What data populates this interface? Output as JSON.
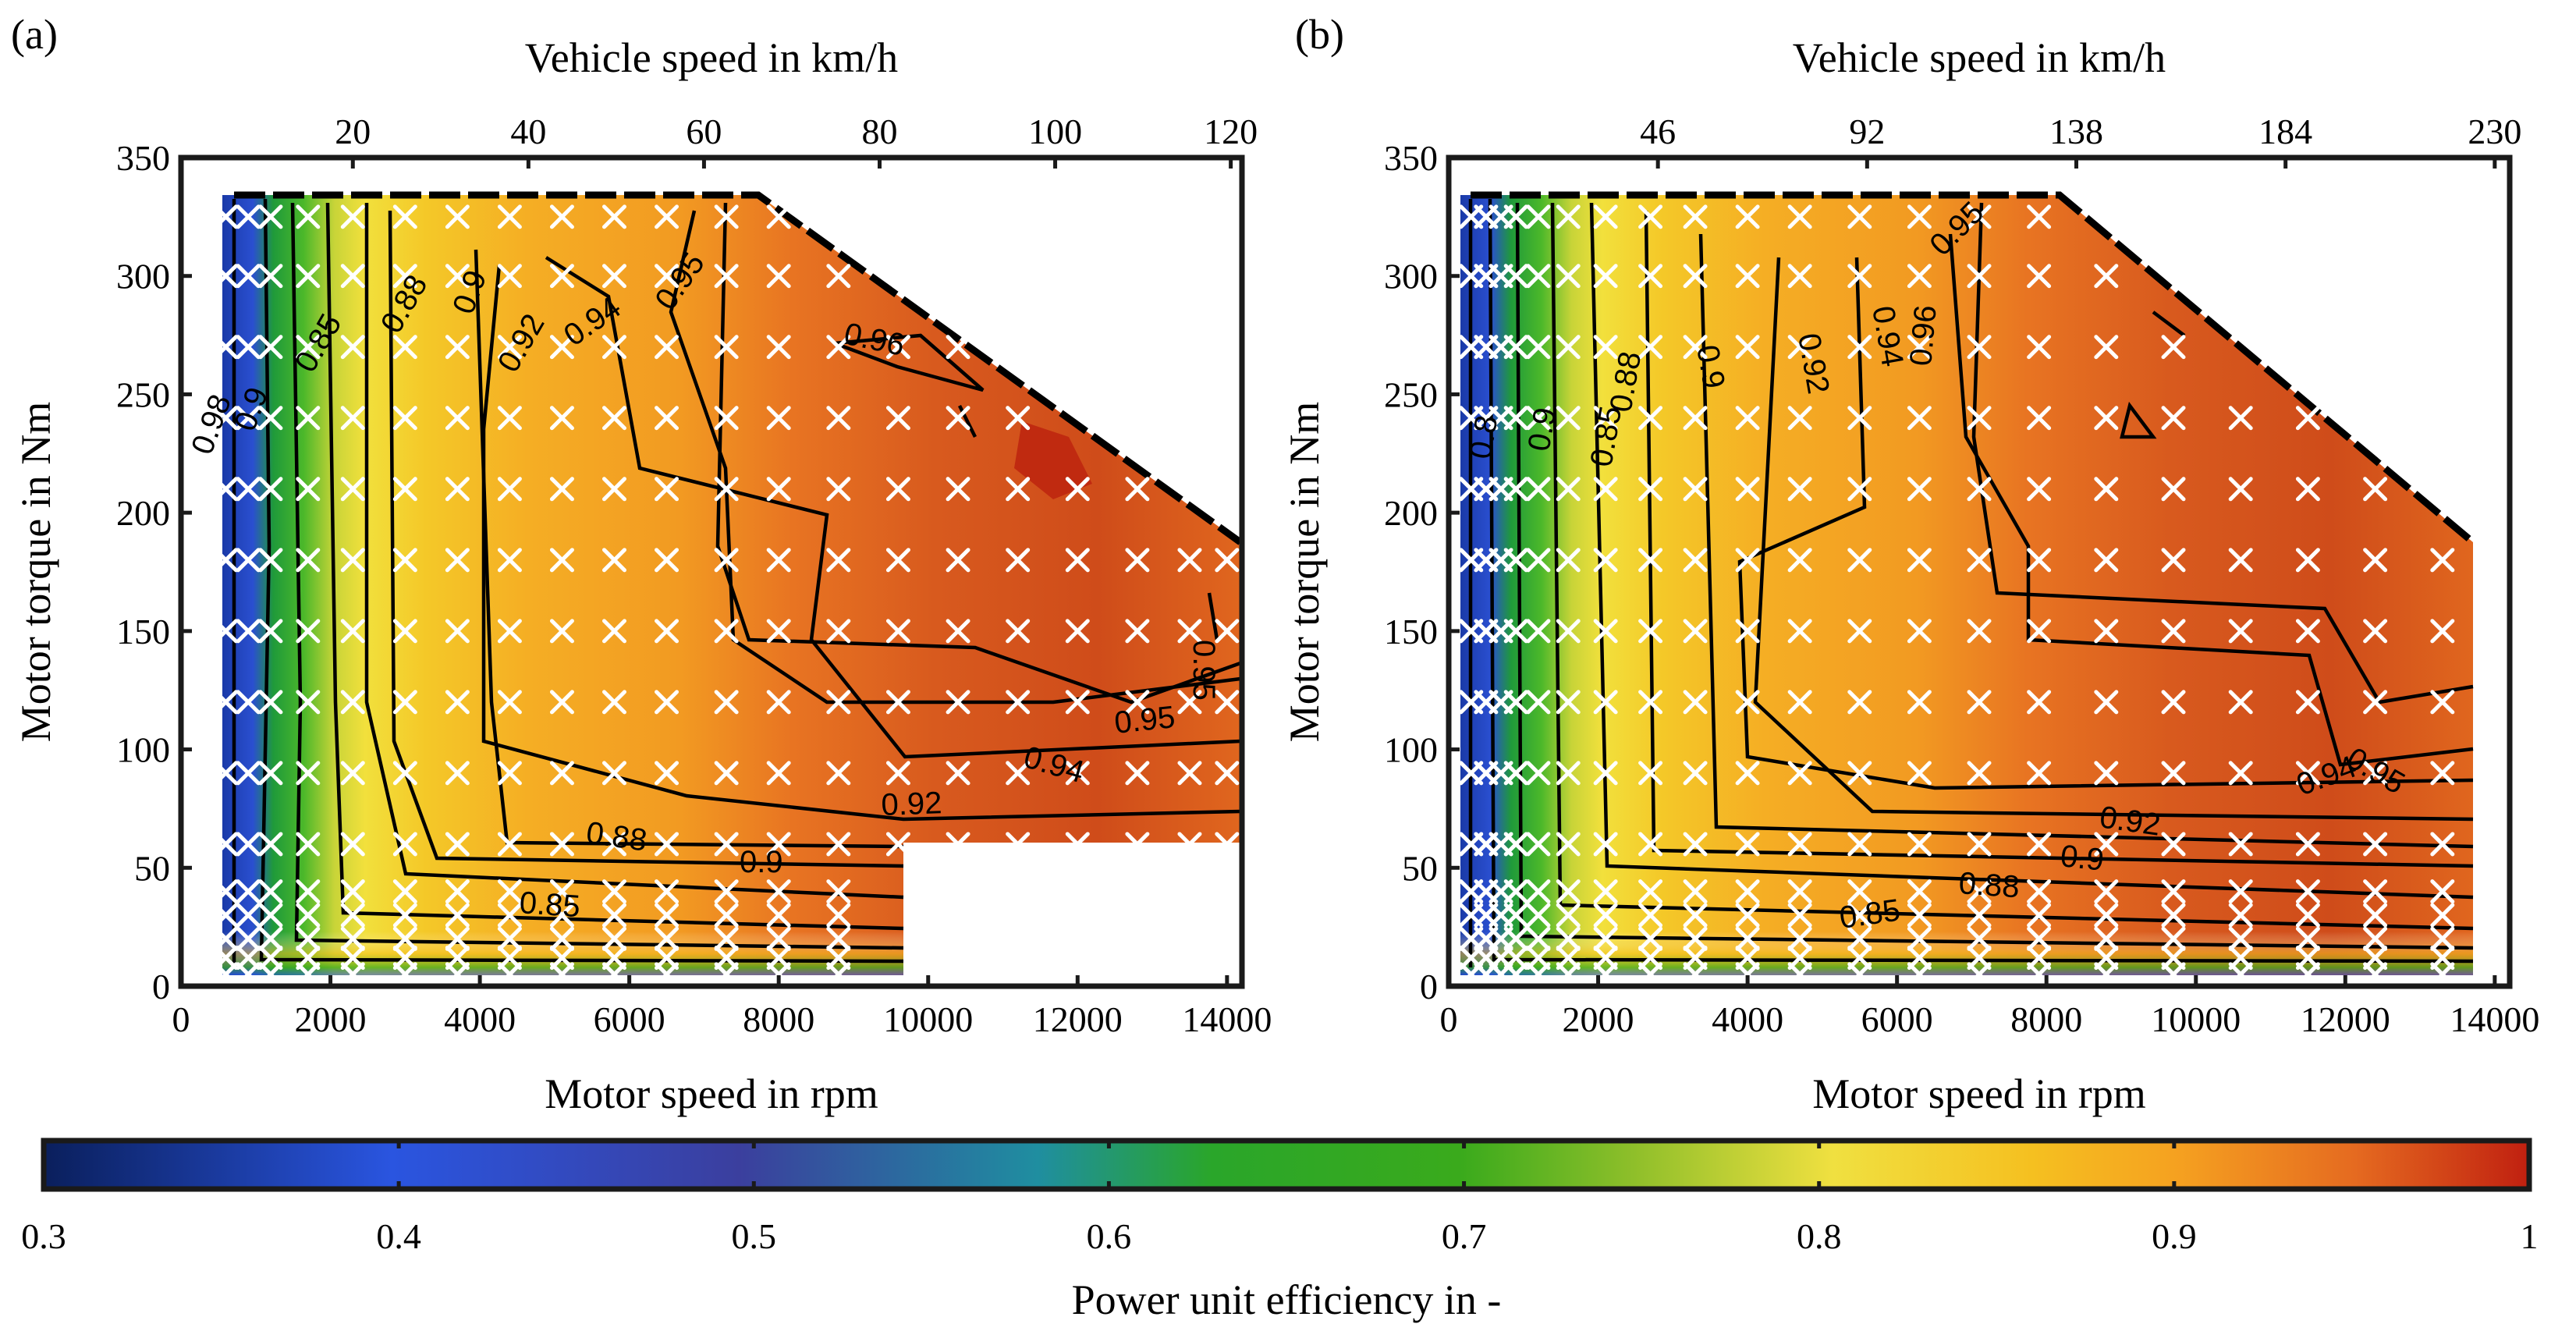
{
  "chart_data": [
    {
      "type": "heatmap",
      "panel_label": "(a)",
      "xlabel": "Motor speed in rpm",
      "ylabel": "Motor torque in Nm",
      "x2label": "Vehicle speed in km/h",
      "xlim": [
        0,
        14200
      ],
      "ylim": [
        0,
        350
      ],
      "x_ticks": [
        "0",
        "2000",
        "4000",
        "6000",
        "8000",
        "10000",
        "12000",
        "14000"
      ],
      "y_ticks": [
        "0",
        "50",
        "100",
        "150",
        "200",
        "250",
        "300",
        "350"
      ],
      "x2_ticks": [
        "20",
        "40",
        "60",
        "80",
        "100",
        "120"
      ],
      "x2_tick_rpm": [
        2300,
        4650,
        7000,
        9350,
        11700,
        14050
      ],
      "contour_labels": [
        "0.92",
        "0.9",
        "0.88",
        "0.85",
        "0.94",
        "0.95",
        "0.96",
        "0.85",
        "0.88",
        "0.9",
        "0.92",
        "0.94",
        "0.95",
        "0.98",
        "0.95",
        "0.9"
      ],
      "region": {
        "x_min": 600,
        "x_max": 14100,
        "y_max": 335,
        "corner": [
          7700,
          335
        ],
        "right_top": [
          14100,
          185
        ],
        "cut_x": 9500,
        "cut_y": 60
      },
      "measurement_points_x": [
        600,
        900,
        1200,
        1700,
        2300,
        3000,
        3700,
        4400,
        5100,
        5800,
        6500,
        7300,
        8000,
        8800,
        9600,
        10400,
        11200,
        12000,
        12800,
        13500,
        14000
      ],
      "measurement_points_y": [
        5,
        12,
        20,
        30,
        40,
        60,
        90,
        120,
        150,
        180,
        210,
        240,
        270,
        300,
        325
      ]
    },
    {
      "type": "heatmap",
      "panel_label": "(b)",
      "xlabel": "Motor speed in rpm",
      "ylabel": "Motor torque in Nm",
      "x2label": "Vehicle speed in km/h",
      "xlim": [
        0,
        14200
      ],
      "ylim": [
        0,
        350
      ],
      "x_ticks": [
        "0",
        "2000",
        "4000",
        "6000",
        "8000",
        "10000",
        "12000",
        "14000"
      ],
      "y_ticks": [
        "0",
        "50",
        "100",
        "150",
        "200",
        "250",
        "300",
        "350"
      ],
      "x2_ticks": [
        "46",
        "92",
        "138",
        "184",
        "230"
      ],
      "x2_tick_rpm": [
        2800,
        5600,
        8400,
        11200,
        14000
      ],
      "contour_labels": [
        "0.95",
        "0.94",
        "0.92",
        "0.9",
        "0.88",
        "0.85",
        "0.96",
        "0.95",
        "0.94",
        "0.92",
        "0.9",
        "0.88",
        "0.85",
        "0.9",
        "0.8"
      ],
      "region": {
        "x_min": 300,
        "x_max": 13600,
        "y_max": 335,
        "corner": [
          7900,
          335
        ],
        "right_top": [
          13600,
          185
        ]
      },
      "measurement_points_x": [
        300,
        500,
        700,
        900,
        1200,
        1600,
        2100,
        2700,
        3300,
        4000,
        4700,
        5500,
        6300,
        7100,
        7900,
        8800,
        9700,
        10600,
        11500,
        12400,
        13300
      ],
      "measurement_points_y": [
        5,
        12,
        20,
        30,
        40,
        60,
        90,
        120,
        150,
        180,
        210,
        240,
        270,
        300,
        325
      ]
    }
  ],
  "colorbar": {
    "label": "Power unit efficiency in -",
    "min": 0.3,
    "max": 1,
    "ticks": [
      "0.3",
      "0.4",
      "0.5",
      "0.6",
      "0.7",
      "0.8",
      "0.9",
      "1"
    ],
    "colors": [
      "#0a1f5c",
      "#2a55e0",
      "#3b3f9e",
      "#1f8ea0",
      "#3aaa1c",
      "#8fbf2a",
      "#f0e040",
      "#f5c020",
      "#f5a020",
      "#e56a20",
      "#c02010"
    ]
  }
}
